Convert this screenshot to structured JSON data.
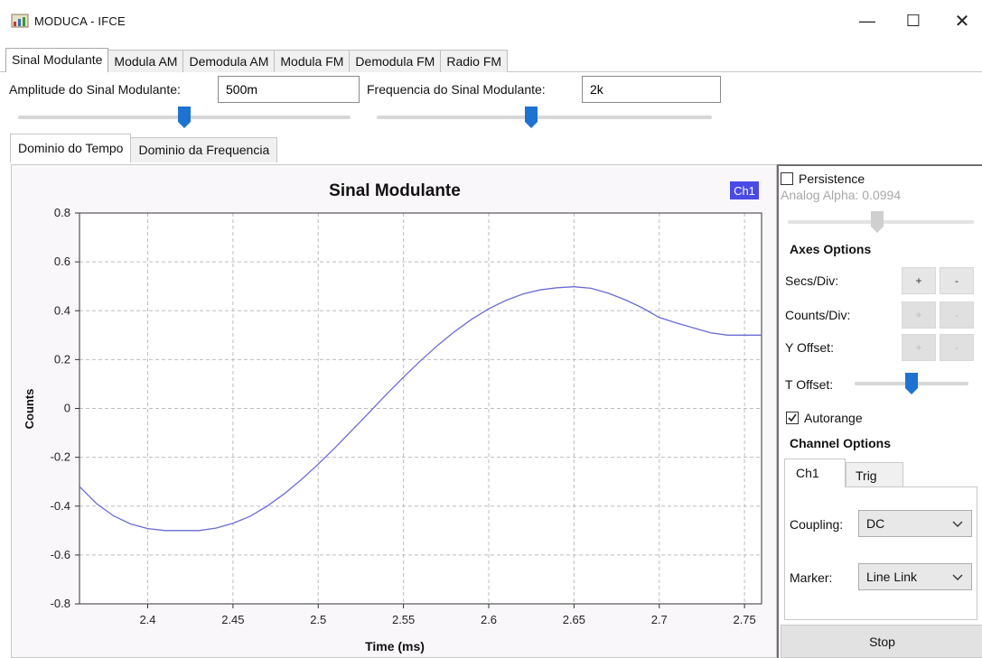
{
  "window": {
    "title": "MODUCA - IFCE",
    "minimize_glyph": "—",
    "maximize_glyph": "☐",
    "close_glyph": "✕",
    "app_icon": "chart-app-icon"
  },
  "top_tabs": [
    {
      "label": "Sinal Modulante",
      "active": true
    },
    {
      "label": "Modula AM",
      "active": false
    },
    {
      "label": "Demodula AM",
      "active": false
    },
    {
      "label": "Modula FM",
      "active": false
    },
    {
      "label": "Demodula FM",
      "active": false
    },
    {
      "label": "Radio FM",
      "active": false
    }
  ],
  "params": {
    "amplitude_label": "Amplitude do Sinal Modulante:",
    "amplitude_value": "500m",
    "frequency_label": "Frequencia do Sinal Modulante:",
    "frequency_value": "2k",
    "amplitude_slider_fraction": 0.5,
    "frequency_slider_fraction": 0.46
  },
  "view_tabs": [
    {
      "label": "Dominio do Tempo",
      "active": true
    },
    {
      "label": "Dominio da Frequencia",
      "active": false
    }
  ],
  "chart_data": {
    "type": "line",
    "title": "Sinal Modulante",
    "xlabel": "Time (ms)",
    "ylabel": "Counts",
    "xlim": [
      2.36,
      2.76
    ],
    "ylim": [
      -0.8,
      0.8
    ],
    "xticks": [
      "2.4",
      "2.45",
      "2.5",
      "2.55",
      "2.6",
      "2.65",
      "2.7",
      "2.75"
    ],
    "yticks": [
      "0.8",
      "0.6",
      "0.4",
      "0.2",
      "0",
      "-0.2",
      "-0.4",
      "-0.6",
      "-0.8"
    ],
    "grid": true,
    "legend": {
      "label": "Ch1",
      "placement": "top-right",
      "color": "#4a4ae6"
    },
    "series": [
      {
        "name": "Ch1",
        "color": "#6b6bd6",
        "points": [
          [
            2.36,
            -0.32
          ],
          [
            2.37,
            -0.39
          ],
          [
            2.38,
            -0.44
          ],
          [
            2.39,
            -0.473
          ],
          [
            2.4,
            -0.492
          ],
          [
            2.41,
            -0.5
          ],
          [
            2.42,
            -0.5
          ],
          [
            2.43,
            -0.5
          ],
          [
            2.44,
            -0.49
          ],
          [
            2.45,
            -0.47
          ],
          [
            2.46,
            -0.442
          ],
          [
            2.47,
            -0.4
          ],
          [
            2.48,
            -0.35
          ],
          [
            2.49,
            -0.292
          ],
          [
            2.5,
            -0.228
          ],
          [
            2.51,
            -0.16
          ],
          [
            2.52,
            -0.088
          ],
          [
            2.53,
            -0.016
          ],
          [
            2.54,
            0.058
          ],
          [
            2.55,
            0.128
          ],
          [
            2.56,
            0.195
          ],
          [
            2.57,
            0.258
          ],
          [
            2.58,
            0.315
          ],
          [
            2.59,
            0.365
          ],
          [
            2.6,
            0.408
          ],
          [
            2.61,
            0.442
          ],
          [
            2.62,
            0.468
          ],
          [
            2.63,
            0.485
          ],
          [
            2.64,
            0.494
          ],
          [
            2.65,
            0.498
          ],
          [
            2.66,
            0.492
          ],
          [
            2.67,
            0.472
          ],
          [
            2.68,
            0.445
          ],
          [
            2.69,
            0.412
          ],
          [
            2.7,
            0.372
          ],
          [
            2.71,
            0.35
          ],
          [
            2.72,
            0.33
          ],
          [
            2.73,
            0.31
          ],
          [
            2.74,
            0.3
          ],
          [
            2.75,
            0.3
          ],
          [
            2.76,
            0.3
          ]
        ]
      }
    ]
  },
  "right_panel": {
    "persistence_label": "Persistence",
    "persistence_checked": false,
    "analog_alpha_text": "Analog Alpha: 0.0994",
    "alpha_slider_fraction": 0.48,
    "axes_options_title": "Axes Options",
    "secs_div_label": "Secs/Div:",
    "counts_div_label": "Counts/Div:",
    "y_offset_label": "Y Offset:",
    "t_offset_label": "T Offset:",
    "plus_glyph": "+",
    "minus_glyph": "-",
    "t_offset_fraction": 0.5,
    "autorange_label": "Autorange",
    "autorange_checked": true,
    "channel_options_title": "Channel Options",
    "channel_tabs": [
      {
        "label": "Ch1",
        "active": true
      },
      {
        "label": "Trig",
        "active": false
      }
    ],
    "coupling_label": "Coupling:",
    "coupling_value": "DC",
    "marker_label": "Marker:",
    "marker_value": "Line Link",
    "stop_label": "Stop"
  }
}
